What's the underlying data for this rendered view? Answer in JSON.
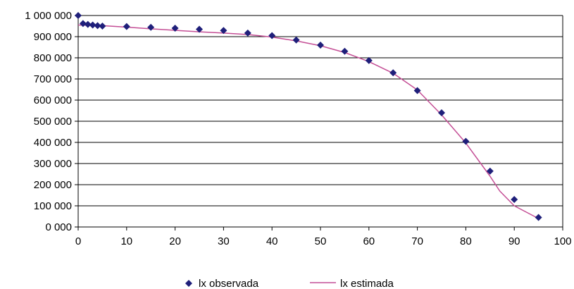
{
  "chart_data": {
    "type": "scatter",
    "xlim": [
      0,
      100
    ],
    "ylim": [
      0,
      1000000
    ],
    "x_ticks": [
      0,
      10,
      20,
      30,
      40,
      50,
      60,
      70,
      80,
      90,
      100
    ],
    "y_ticks": [
      0,
      100000,
      200000,
      300000,
      400000,
      500000,
      600000,
      700000,
      800000,
      900000,
      1000000
    ],
    "x_tick_labels": [
      "0",
      "10",
      "20",
      "30",
      "40",
      "50",
      "60",
      "70",
      "80",
      "90",
      "100"
    ],
    "y_tick_labels": [
      "0 000",
      "100 000",
      "200 000",
      "300 000",
      "400 000",
      "500 000",
      "600 000",
      "700 000",
      "800 000",
      "900 000",
      "1 000 000"
    ],
    "grid": "horizontal",
    "legend_position": "bottom",
    "series": [
      {
        "name": "lx observada",
        "type": "scatter",
        "marker": "diamond",
        "color": "#1f1f7a",
        "x": [
          0,
          1,
          2,
          3,
          4,
          5,
          10,
          15,
          20,
          25,
          30,
          35,
          40,
          45,
          50,
          55,
          60,
          65,
          70,
          75,
          80,
          85,
          90,
          95
        ],
        "y": [
          1000000,
          962000,
          958000,
          955000,
          952000,
          950000,
          948000,
          944000,
          940000,
          935000,
          929000,
          917000,
          905000,
          884000,
          860000,
          831000,
          787000,
          729000,
          645000,
          540000,
          405000,
          264000,
          130000,
          45000
        ]
      },
      {
        "name": "lx estimada",
        "type": "line",
        "color": "#c44e95",
        "x": [
          0,
          5,
          10,
          15,
          20,
          25,
          30,
          35,
          40,
          45,
          50,
          55,
          60,
          65,
          70,
          75,
          80,
          85,
          87,
          90,
          95
        ],
        "y": [
          955000,
          952000,
          945000,
          937000,
          930000,
          923000,
          917000,
          910000,
          898000,
          880000,
          857000,
          825000,
          782000,
          727000,
          648000,
          530000,
          397000,
          240000,
          170000,
          100000,
          40000
        ]
      }
    ]
  }
}
